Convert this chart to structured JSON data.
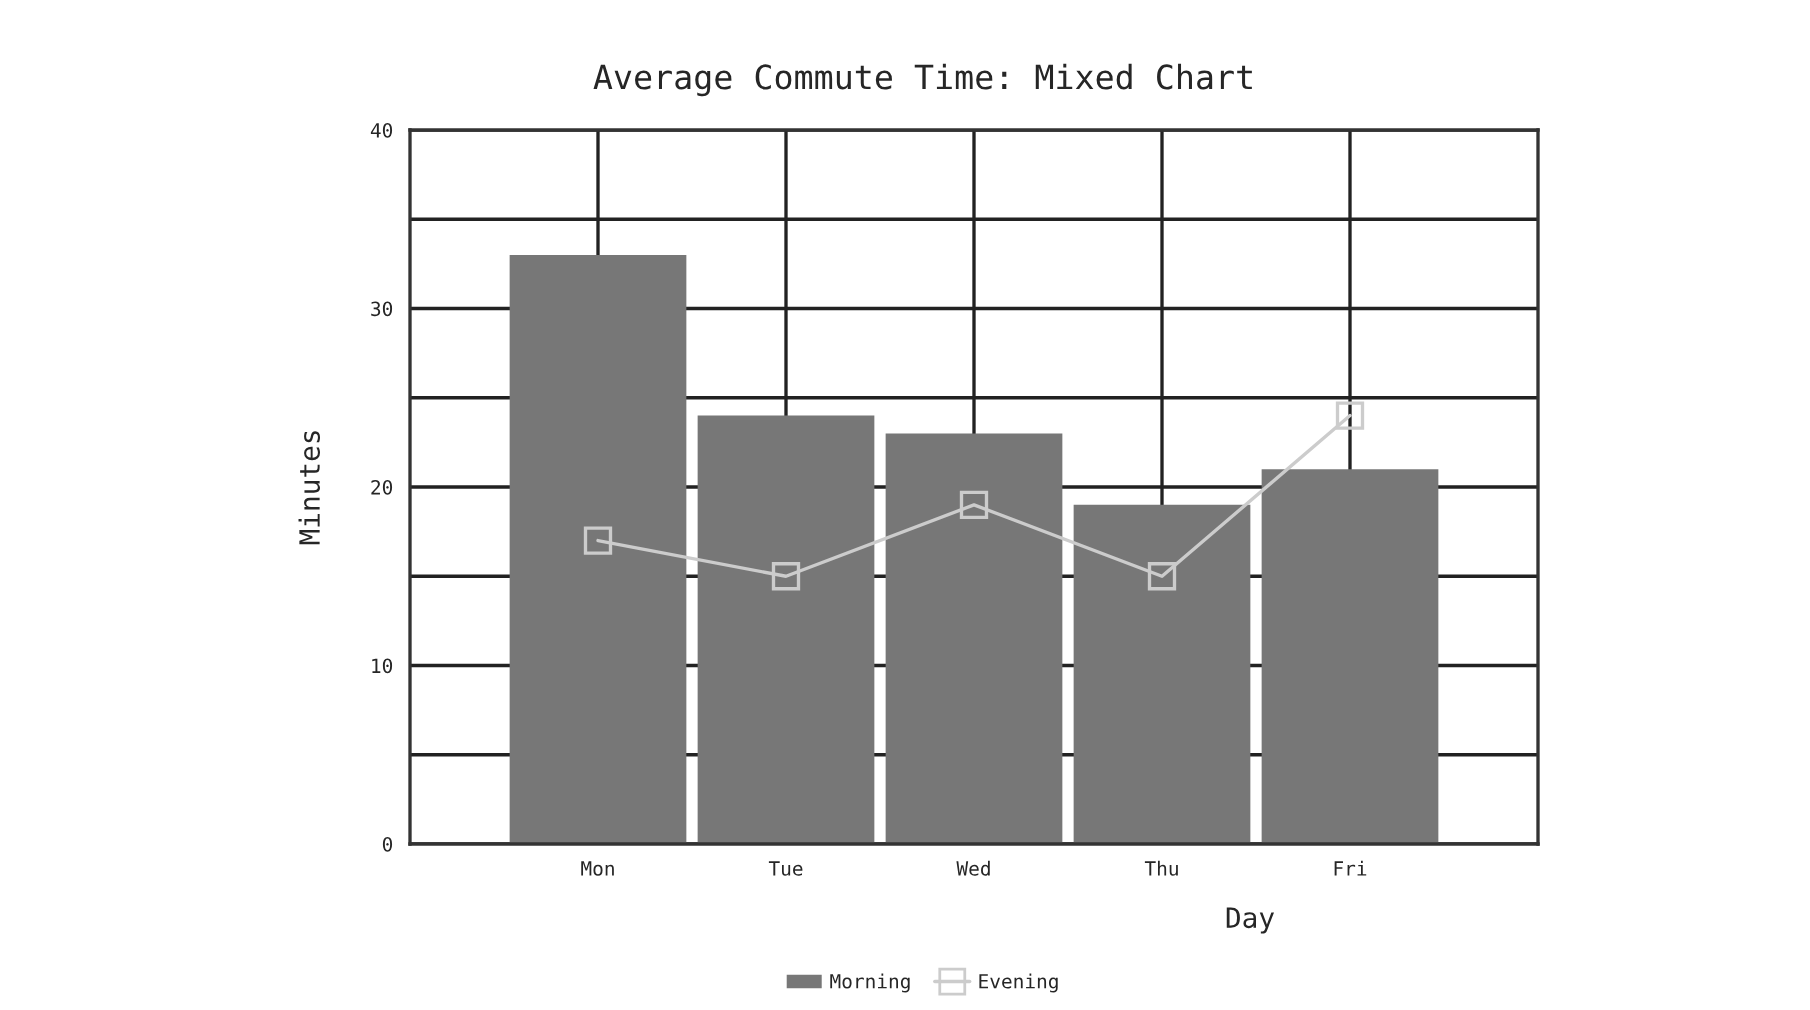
{
  "chart_data": {
    "type": "bar",
    "title": "Average Commute Time: Mixed Chart",
    "xlabel": "Day",
    "ylabel": "Minutes",
    "categories": [
      "Mon",
      "Tue",
      "Wed",
      "Thu",
      "Fri"
    ],
    "series": [
      {
        "name": "Morning",
        "color": "#777777",
        "values": [
          33,
          24,
          23,
          19,
          21
        ]
      },
      {
        "name": "Evening",
        "type": "line",
        "color": "#cccccc",
        "values": [
          17,
          15,
          19,
          15,
          24
        ]
      }
    ],
    "ylim": [
      0,
      40
    ],
    "yticks": [
      0,
      {
        "value": 5,
        "label": null
      },
      10,
      {
        "value": 15,
        "label": null
      },
      20,
      {
        "value": 25,
        "label": null
      },
      30,
      {
        "value": 35,
        "label": null
      },
      40
    ],
    "grid": true,
    "legend": "bottom",
    "marker": "square",
    "line_style": "solid"
  }
}
